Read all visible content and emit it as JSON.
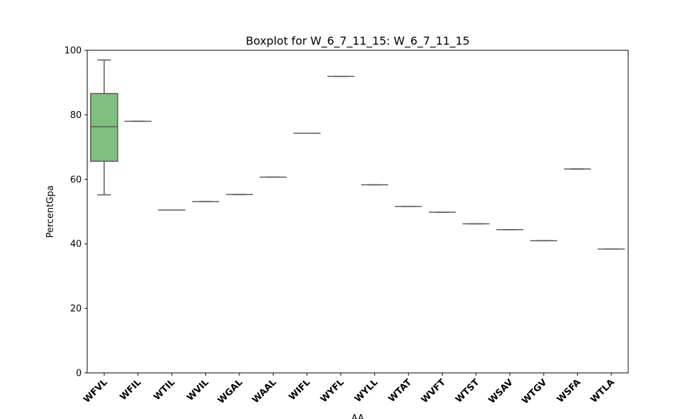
{
  "chart_data": {
    "type": "boxplot",
    "title": "Boxplot for W_6_7_11_15: W_6_7_11_15",
    "xlabel": "AA",
    "ylabel": "PercentGpa",
    "ylim": [
      0,
      100
    ],
    "yticks": [
      "0",
      "20",
      "40",
      "60",
      "80",
      "100"
    ],
    "grid": false,
    "box_color": "#7fbf7f",
    "line_color": "#5a5a5a",
    "categories": [
      "WFVL",
      "WFIL",
      "WTIL",
      "WVIL",
      "WGAL",
      "WAAL",
      "WIFL",
      "WYFL",
      "WYLL",
      "WTAT",
      "WVFT",
      "WTST",
      "WSAV",
      "WTGV",
      "WSFA",
      "WTLA"
    ],
    "boxes": [
      {
        "category": "WFVL",
        "min": 55.2,
        "q1": 65.6,
        "median": 76.3,
        "q3": 86.6,
        "max": 97.0
      },
      {
        "category": "WFIL",
        "min": 78.0,
        "q1": 78.0,
        "median": 78.0,
        "q3": 78.0,
        "max": 78.0
      },
      {
        "category": "WTIL",
        "min": 50.5,
        "q1": 50.5,
        "median": 50.5,
        "q3": 50.5,
        "max": 50.5
      },
      {
        "category": "WVIL",
        "min": 53.1,
        "q1": 53.1,
        "median": 53.1,
        "q3": 53.1,
        "max": 53.1
      },
      {
        "category": "WGAL",
        "min": 55.3,
        "q1": 55.3,
        "median": 55.3,
        "q3": 55.3,
        "max": 55.3
      },
      {
        "category": "WAAL",
        "min": 60.7,
        "q1": 60.7,
        "median": 60.7,
        "q3": 60.7,
        "max": 60.7
      },
      {
        "category": "WIFL",
        "min": 74.3,
        "q1": 74.3,
        "median": 74.3,
        "q3": 74.3,
        "max": 74.3
      },
      {
        "category": "WYFL",
        "min": 91.9,
        "q1": 91.9,
        "median": 91.9,
        "q3": 91.9,
        "max": 91.9
      },
      {
        "category": "WYLL",
        "min": 58.3,
        "q1": 58.3,
        "median": 58.3,
        "q3": 58.3,
        "max": 58.3
      },
      {
        "category": "WTAT",
        "min": 51.6,
        "q1": 51.6,
        "median": 51.6,
        "q3": 51.6,
        "max": 51.6
      },
      {
        "category": "WVFT",
        "min": 49.8,
        "q1": 49.8,
        "median": 49.8,
        "q3": 49.8,
        "max": 49.8
      },
      {
        "category": "WTST",
        "min": 46.2,
        "q1": 46.2,
        "median": 46.2,
        "q3": 46.2,
        "max": 46.2
      },
      {
        "category": "WSAV",
        "min": 44.4,
        "q1": 44.4,
        "median": 44.4,
        "q3": 44.4,
        "max": 44.4
      },
      {
        "category": "WTGV",
        "min": 41.0,
        "q1": 41.0,
        "median": 41.0,
        "q3": 41.0,
        "max": 41.0
      },
      {
        "category": "WSFA",
        "min": 63.2,
        "q1": 63.2,
        "median": 63.2,
        "q3": 63.2,
        "max": 63.2
      },
      {
        "category": "WTLA",
        "min": 38.4,
        "q1": 38.4,
        "median": 38.4,
        "q3": 38.4,
        "max": 38.4
      }
    ]
  }
}
